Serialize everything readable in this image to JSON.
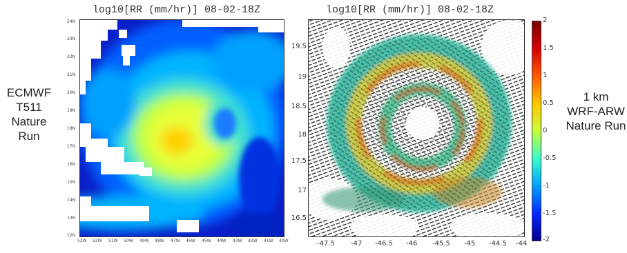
{
  "left_panel": {
    "title": "log10[RR (mm/hr)] 08-02-18Z",
    "side_label": [
      "ECMWF",
      "T511",
      "Nature Run"
    ],
    "y_ticks": [
      "24N",
      "23N",
      "22N",
      "21N",
      "20N",
      "19N",
      "18N",
      "17N",
      "16N",
      "15N",
      "14N",
      "13N",
      "12N"
    ],
    "x_ticks": [
      "52W",
      "52W",
      "51W",
      "50W",
      "49W",
      "48W",
      "47W",
      "46W",
      "45W",
      "44W",
      "43W",
      "42W",
      "41W",
      "40W"
    ]
  },
  "right_panel": {
    "title": "log10[RR (mm/hr)] 08-02-18Z",
    "side_label": [
      "1 km",
      "WRF-ARW",
      "Nature Run"
    ],
    "y_ticks": [
      "19.5",
      "19",
      "18.5",
      "18",
      "17.5",
      "17",
      "16.5"
    ],
    "x_ticks": [
      "-47.5",
      "-47",
      "-46.5",
      "-46",
      "-45.5",
      "-45",
      "-44.5",
      "-44"
    ]
  },
  "colorbar": {
    "ticks": [
      "2",
      "1.5",
      "1",
      "0.5",
      "0",
      "-0.5",
      "-1",
      "-1.5",
      "-2"
    ],
    "stops": [
      "#7f0000",
      "#d40000",
      "#ff5a00",
      "#ffc800",
      "#c8ff37",
      "#37ffc8",
      "#00a0ff",
      "#0028ff",
      "#00008f"
    ]
  }
}
